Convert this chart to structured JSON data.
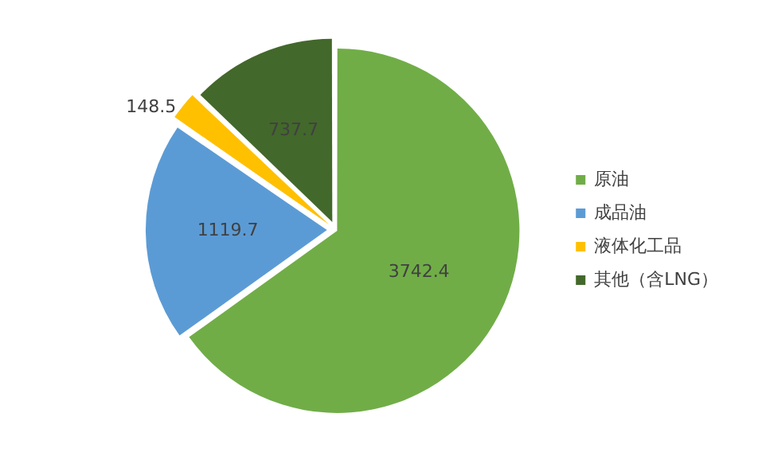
{
  "chart_data": {
    "type": "pie",
    "categories": [
      "原油",
      "成品油",
      "液体化工品",
      "其他（含LNG）"
    ],
    "values": [
      3742.4,
      1119.7,
      148.5,
      737.7
    ],
    "colors": [
      "#70ad47",
      "#5b9bd5",
      "#ffc000",
      "#43682b"
    ],
    "data_labels": true,
    "legend": "right"
  }
}
